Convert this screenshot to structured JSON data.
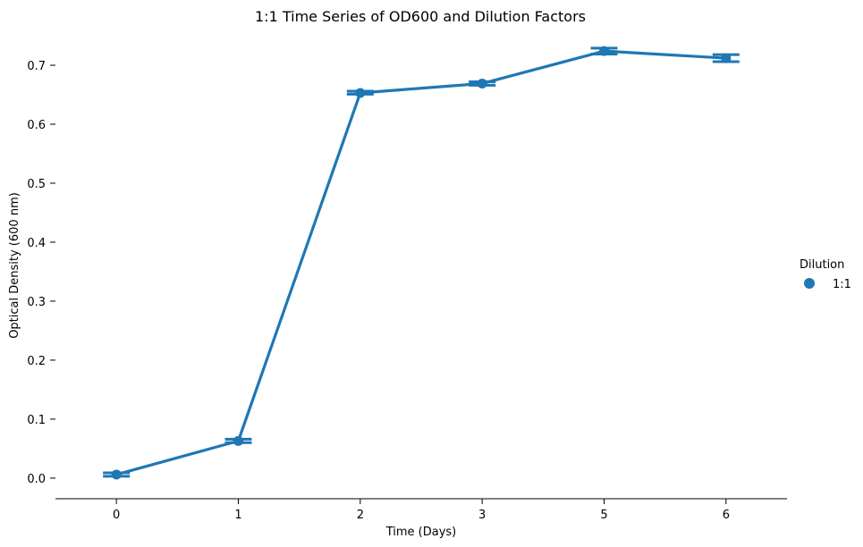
{
  "chart_data": {
    "type": "line",
    "title": "1:1 Time Series of OD600 and Dilution Factors",
    "xlabel": "Time (Days)",
    "ylabel": "Optical Density (600 nm)",
    "categories": [
      "0",
      "1",
      "2",
      "3",
      "5",
      "6"
    ],
    "ylim": [
      -0.035,
      0.75
    ],
    "yticks": [
      0.0,
      0.1,
      0.2,
      0.3,
      0.4,
      0.5,
      0.6,
      0.7
    ],
    "ytick_labels": [
      "0.0",
      "0.1",
      "0.2",
      "0.3",
      "0.4",
      "0.5",
      "0.6",
      "0.7"
    ],
    "grid": false,
    "legend": {
      "title": "Dilution",
      "placement": "right"
    },
    "series": [
      {
        "name": "1:1",
        "color": "#1f77b4",
        "values": [
          0.006,
          0.063,
          0.653,
          0.669,
          0.724,
          0.712
        ],
        "error_low": [
          0.003,
          0.06,
          0.651,
          0.666,
          0.719,
          0.706
        ],
        "error_high": [
          0.009,
          0.066,
          0.656,
          0.672,
          0.729,
          0.718
        ]
      }
    ]
  }
}
